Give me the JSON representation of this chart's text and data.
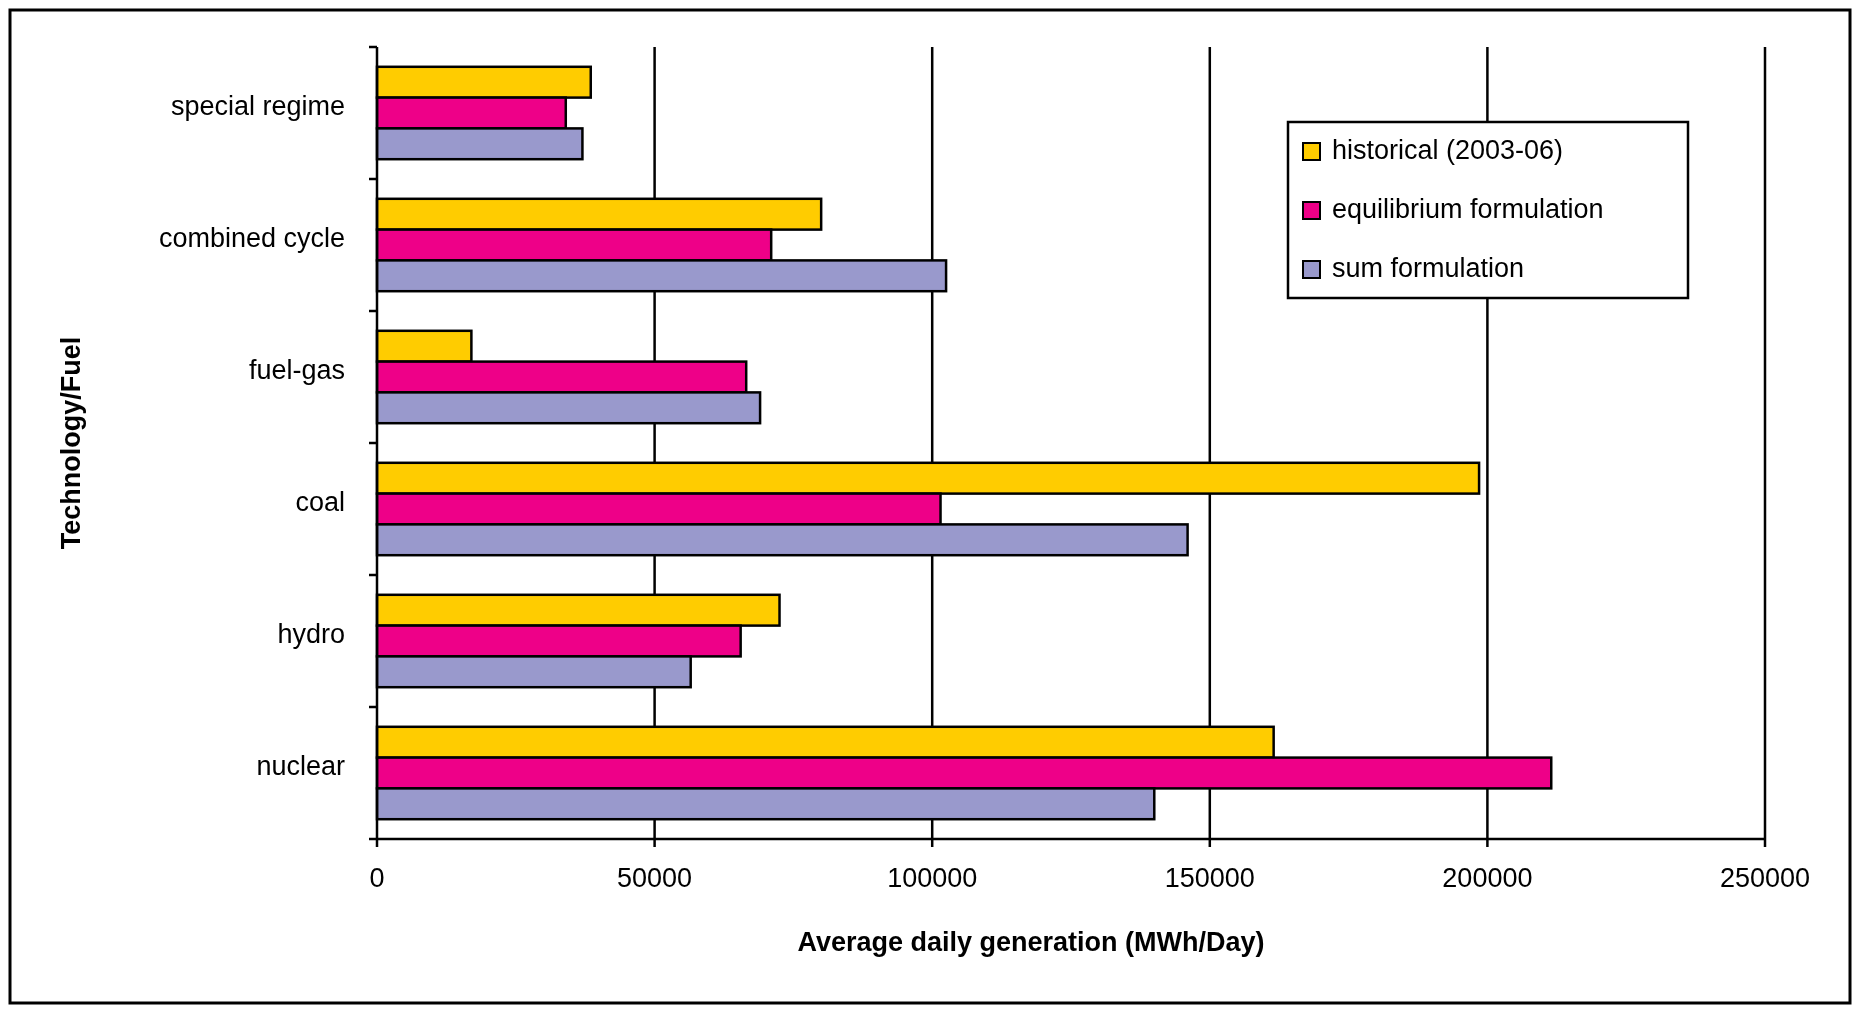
{
  "chart_data": {
    "type": "bar",
    "orientation": "horizontal",
    "xlabel": "Average daily generation (MWh/Day)",
    "ylabel": "Technology/Fuel",
    "categories": [
      "special regime",
      "combined cycle",
      "fuel-gas",
      "coal",
      "hydro",
      "nuclear"
    ],
    "series": [
      {
        "name": "historical (2003-06)",
        "color": "#ffcc00",
        "values": [
          38500,
          80000,
          17000,
          198500,
          72500,
          161500
        ]
      },
      {
        "name": "equilibrium formulation",
        "color": "#ee0088",
        "values": [
          34000,
          71000,
          66500,
          101500,
          65500,
          211500
        ]
      },
      {
        "name": "sum formulation",
        "color": "#9999cc",
        "values": [
          37000,
          102500,
          69000,
          146000,
          56500,
          140000
        ]
      }
    ],
    "xlim": [
      0,
      250000
    ],
    "xticks": [
      0,
      50000,
      100000,
      150000,
      200000,
      250000
    ],
    "grid": "x",
    "legend": "top right"
  }
}
